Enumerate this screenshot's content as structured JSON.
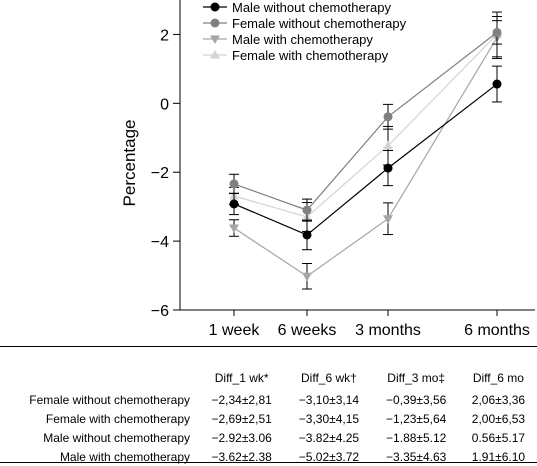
{
  "chart_data": {
    "type": "line",
    "title": "",
    "xlabel": "",
    "ylabel": "Percentage",
    "categories": [
      "1 week",
      "6 weeks",
      "3 months",
      "6 months"
    ],
    "ylim": [
      -6,
      3
    ],
    "yticks": [
      -6,
      -4,
      -2,
      0,
      2
    ],
    "ytick_labels": [
      "−6",
      "−4",
      "−2",
      "0",
      "2"
    ],
    "legend_position": "top",
    "series": [
      {
        "name": "Male without chemotherapy",
        "color": "#000000",
        "marker": "circle",
        "values": [
          -2.92,
          -3.82,
          -1.88,
          0.56
        ],
        "err": [
          0.31,
          0.43,
          0.51,
          0.52
        ]
      },
      {
        "name": "Female without chemotherapy",
        "color": "#808080",
        "marker": "circle",
        "values": [
          -2.34,
          -3.1,
          -0.39,
          2.06
        ],
        "err": [
          0.28,
          0.32,
          0.36,
          0.34
        ]
      },
      {
        "name": "Male with chemotherapy",
        "color": "#a6a6a6",
        "marker": "triangle-down",
        "values": [
          -3.62,
          -5.02,
          -3.35,
          1.91
        ],
        "err": [
          0.24,
          0.37,
          0.46,
          0.61
        ]
      },
      {
        "name": "Female with chemotherapy",
        "color": "#d4d4d4",
        "marker": "triangle-up",
        "values": [
          -2.69,
          -3.3,
          -1.23,
          2.0
        ],
        "err": [
          0.25,
          0.42,
          0.56,
          0.65
        ]
      }
    ]
  },
  "table": {
    "columns": [
      "Diff_1 wk*",
      "Diff_6 wk†",
      "Diff_3 mo‡",
      "Diff_6 mo"
    ],
    "rows": [
      {
        "label": "Female without chemotherapy",
        "cells": [
          "−2,34±2,81",
          "−3,10±3,14",
          "−0,39±3,56",
          "2,06±3,36"
        ]
      },
      {
        "label": "Female with chemotherapy",
        "cells": [
          "−2,69±2,51",
          "−3,30±4,15",
          "−1,23±5,64",
          "2,00±6,53"
        ]
      },
      {
        "label": "Male without chemotherapy",
        "cells": [
          "−2.92±3.06",
          "−3.82±4.25",
          "−1.88±5.12",
          "0.56±5.17"
        ]
      },
      {
        "label": "Male with chemotherapy",
        "cells": [
          "−3.62±2.38",
          "−5.02±3.72",
          "−3.35±4.63",
          "1.91±6.10"
        ]
      }
    ]
  }
}
